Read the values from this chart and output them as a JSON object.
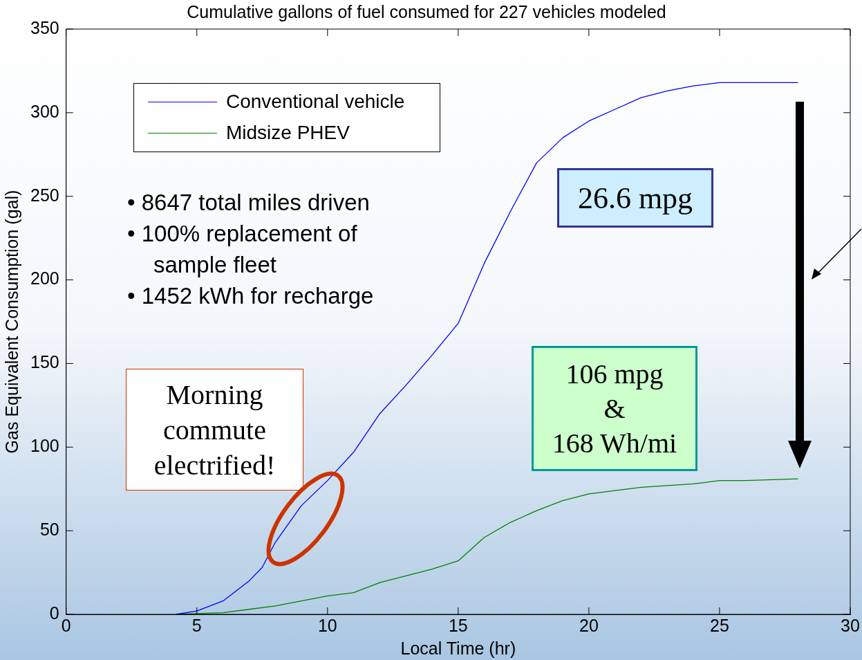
{
  "chart_data": {
    "type": "line",
    "title": "Cumulative gallons of fuel consumed for 227 vehicles modeled",
    "xlabel": "Local Time (hr)",
    "ylabel": "Gas Equivalent Consumption (gal)",
    "xlim": [
      0,
      30
    ],
    "xticks": [
      0,
      5,
      10,
      15,
      20,
      25,
      30
    ],
    "ylim": [
      0,
      350
    ],
    "yticks": [
      0,
      50,
      100,
      150,
      200,
      250,
      300,
      350
    ],
    "grid": false,
    "legend": "top left",
    "marker": "none",
    "line_style": "solid",
    "series": [
      {
        "name": "Conventional vehicle",
        "color": "#0000ff",
        "x": [
          4.2,
          5,
          6,
          7,
          7.5,
          8,
          9,
          10,
          11,
          12,
          13,
          14,
          15,
          16,
          17,
          18,
          19,
          20,
          21,
          22,
          23,
          24,
          25,
          26,
          28
        ],
        "values": [
          0,
          2,
          8,
          20,
          28,
          43,
          65,
          80,
          97,
          120,
          137,
          155,
          174,
          210,
          241,
          270,
          285,
          295,
          302,
          309,
          313,
          316,
          318,
          318,
          318
        ]
      },
      {
        "name": "Midsize PHEV",
        "color": "#008000",
        "x": [
          4.2,
          5,
          6,
          7,
          8,
          9,
          10,
          11,
          12,
          13,
          14,
          15,
          16,
          17,
          18,
          19,
          20,
          21,
          22,
          24,
          25,
          26,
          28
        ],
        "values": [
          0,
          0.5,
          1,
          3,
          5,
          8,
          11,
          13,
          19,
          23,
          27,
          32,
          46,
          55,
          62,
          68,
          72,
          74,
          76,
          78,
          80,
          80,
          81
        ]
      }
    ],
    "annotations": [
      "• 8647 total miles driven",
      "• 100% replacement of sample fleet",
      "• 1452 kWh for recharge",
      "26.6 mpg",
      "106 mpg\n&\n168 Wh/mi",
      "Morning commute electrified!"
    ]
  }
}
